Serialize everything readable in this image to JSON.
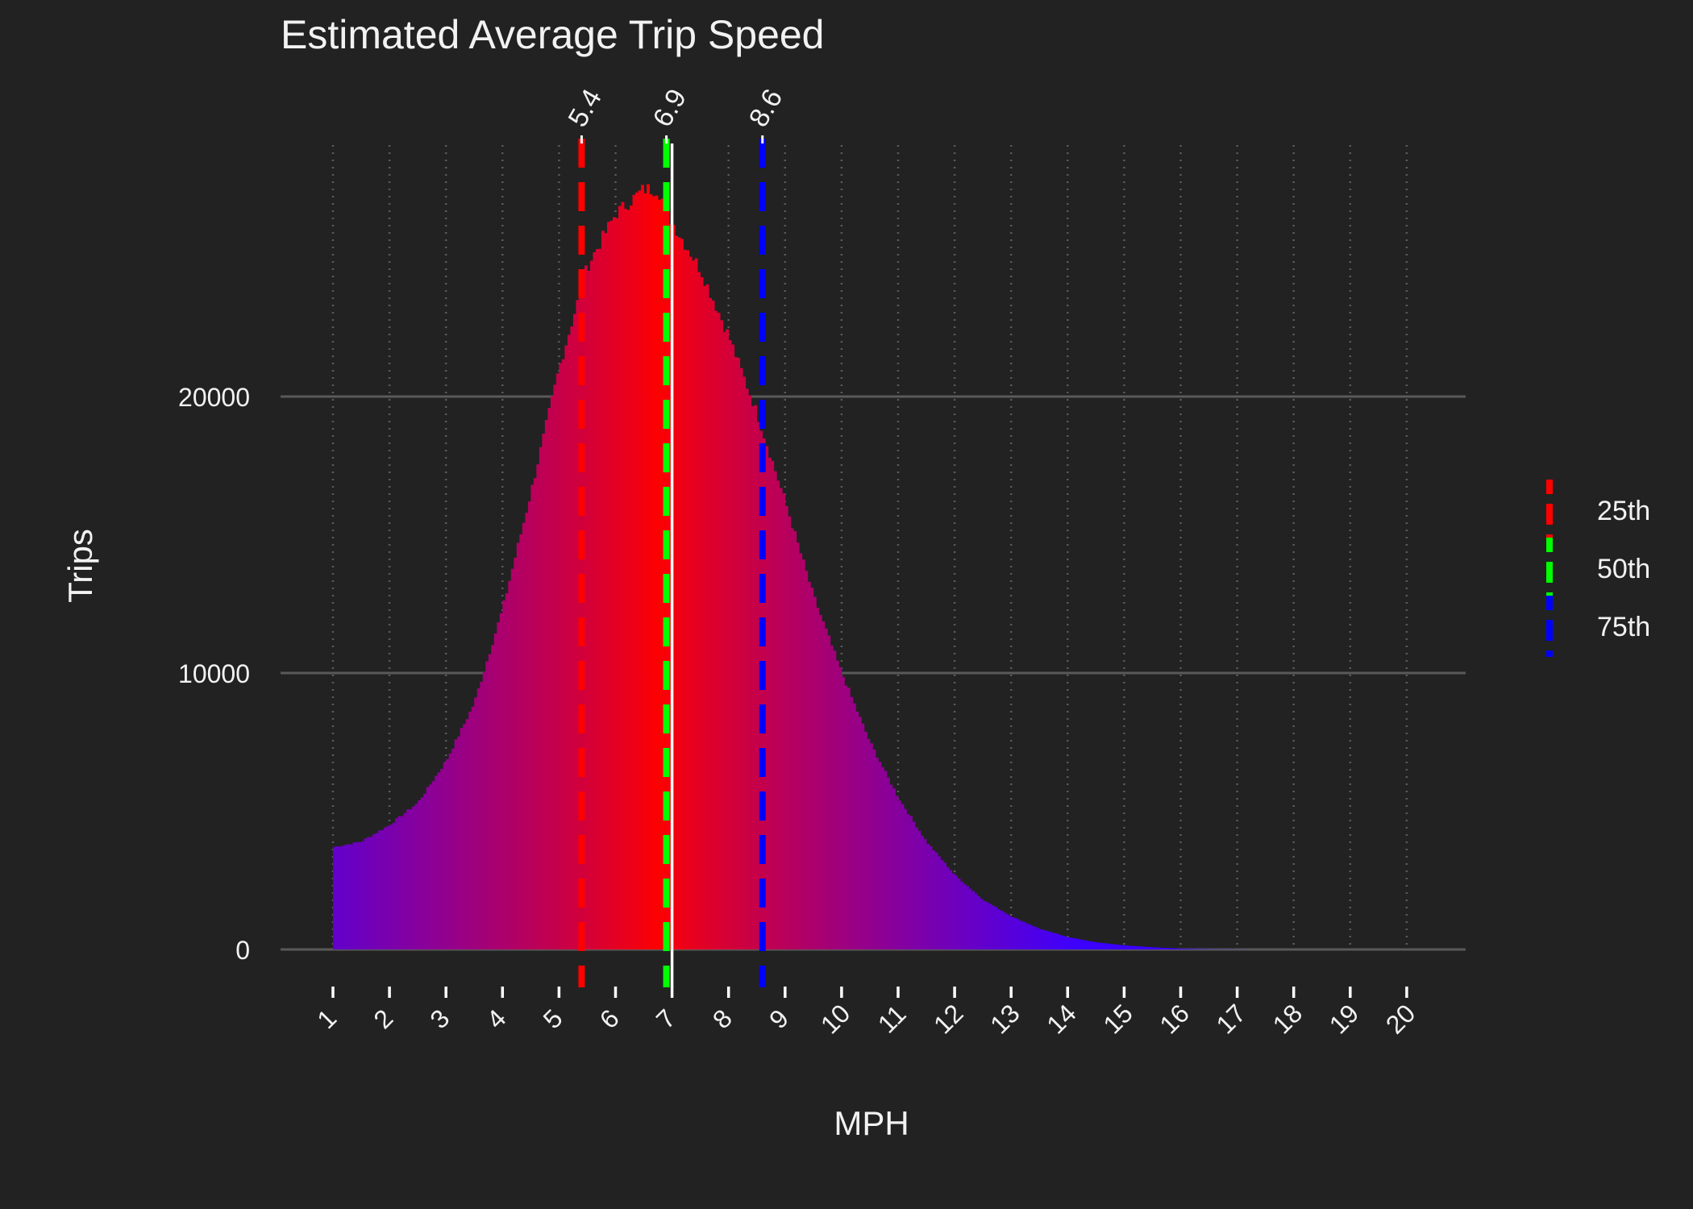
{
  "chart_data": {
    "type": "bar",
    "title": "Estimated Average Trip Speed",
    "xlabel": "MPH",
    "ylabel": "Trips",
    "xlim": [
      0.8,
      20.9
    ],
    "ylim": [
      0,
      29000
    ],
    "x_ticks": [
      "1",
      "2",
      "3",
      "4",
      "5",
      "6",
      "7",
      "8",
      "9",
      "10",
      "11",
      "12",
      "13",
      "14",
      "15",
      "16",
      "17",
      "18",
      "19",
      "20"
    ],
    "y_ticks": [
      "0",
      "10000",
      "20000"
    ],
    "grid": true,
    "legend_position": "right",
    "bin_width": 0.05,
    "mean": 7.0,
    "curve_anchors": {
      "x": [
        1.0,
        1.5,
        2.0,
        2.5,
        3.0,
        3.5,
        4.0,
        4.5,
        5.0,
        5.5,
        6.0,
        6.5,
        6.75,
        7.0,
        7.5,
        8.0,
        8.5,
        9.0,
        9.5,
        10.0,
        10.5,
        11.0,
        11.5,
        12.0,
        12.5,
        13.0,
        13.5,
        14.0,
        14.5,
        15.0,
        15.5,
        16.0,
        16.5,
        17.0,
        18.0,
        20.0
      ],
      "y": [
        3700,
        3900,
        4500,
        5300,
        6800,
        8900,
        12300,
        16500,
        21000,
        24700,
        26600,
        27500,
        27500,
        26300,
        24600,
        22200,
        19400,
        16200,
        12800,
        10000,
        7500,
        5500,
        3900,
        2700,
        1800,
        1200,
        750,
        450,
        260,
        150,
        80,
        30,
        10,
        3,
        0,
        0
      ]
    },
    "percentiles": [
      {
        "label": "5.4",
        "value": 5.4,
        "legend": "25th",
        "color": "#ff0000"
      },
      {
        "label": "6.9",
        "value": 6.9,
        "legend": "50th",
        "color": "#00ff00"
      },
      {
        "label": "8.6",
        "value": 8.6,
        "legend": "75th",
        "color": "#0000ff"
      }
    ],
    "gradient_colors": {
      "center": "#ff0000",
      "edge": "#3b00ff",
      "mean_line": "#ffffff"
    }
  }
}
